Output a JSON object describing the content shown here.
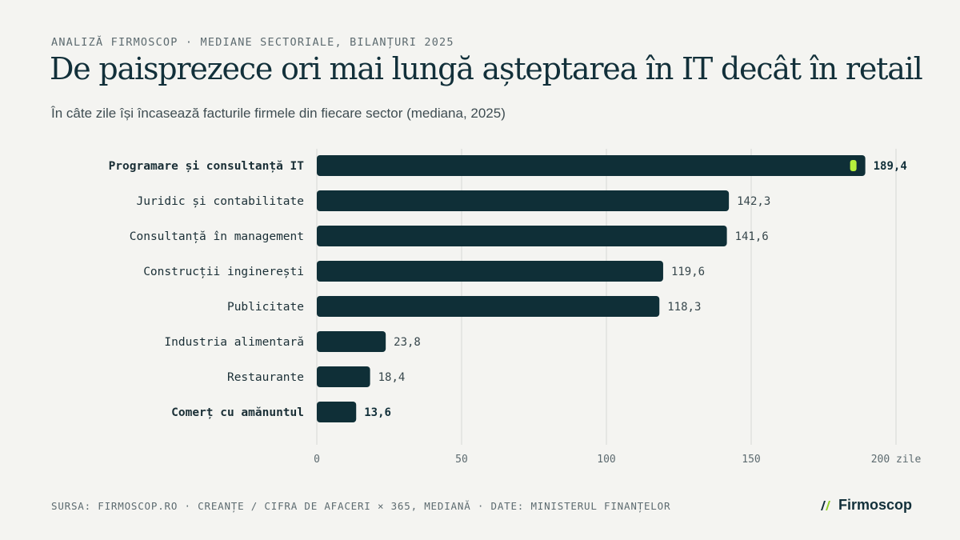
{
  "header": {
    "kicker": "ANALIZĂ FIRMOSCOP · MEDIANE SECTORIALE, BILANȚURI 2025",
    "title": "De paisprezece ori mai lungă așteptarea în IT decât în retail",
    "subtitle": "În câte zile își încasează facturile firmele din fiecare sector (mediana, 2025)"
  },
  "chart_data": {
    "type": "bar",
    "orientation": "horizontal",
    "categories": [
      "Programare și consultanță IT",
      "Juridic și contabilitate",
      "Consultanță în management",
      "Construcții inginerești",
      "Publicitate",
      "Industria alimentară",
      "Restaurante",
      "Comerț cu amănuntul"
    ],
    "values": [
      189.4,
      142.3,
      141.6,
      119.6,
      118.3,
      23.8,
      18.4,
      13.6
    ],
    "value_labels": [
      "189,4",
      "142,3",
      "141,6",
      "119,6",
      "118,3",
      "23,8",
      "18,4",
      "13,6"
    ],
    "highlighted": [
      0,
      7
    ],
    "xlim": [
      0,
      200
    ],
    "xticks": [
      0,
      50,
      100,
      150,
      200
    ],
    "xtick_labels": [
      "0",
      "50",
      "100",
      "150",
      "200 zile"
    ],
    "grid": true,
    "colors": {
      "bar": "#0f2f37",
      "accent": "#b5f03c",
      "grid": "#d6d8d5"
    }
  },
  "footer": {
    "source": "SURSA: FIRMOSCOP.RO · CREANȚE / CIFRA DE AFACERI × 365, MEDIANĂ · DATE: MINISTERUL FINANȚELOR",
    "brand": "Firmoscop",
    "brand_icon": "double-slash-logo-icon"
  }
}
